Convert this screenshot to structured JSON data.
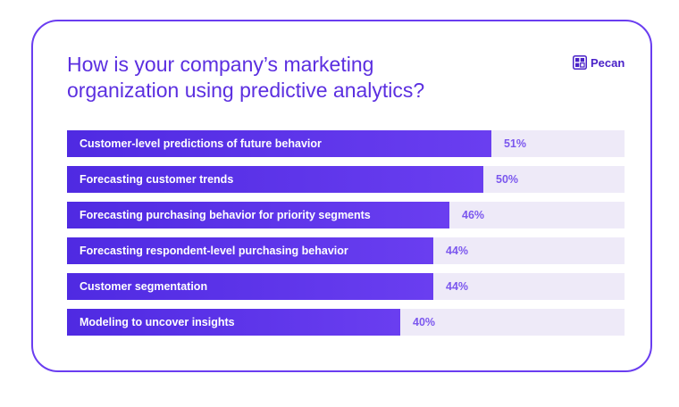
{
  "logo": {
    "text": "Pecan",
    "icon": "pecan-logo-icon"
  },
  "colors": {
    "accent": "#5b2fe0",
    "bar_start": "#4f2ae2",
    "bar_end": "#6a3ef0",
    "track": "#eeeaf8",
    "value_text": "#7b57ee"
  },
  "chart_data": {
    "type": "bar",
    "orientation": "horizontal",
    "title": "How is your company’s marketing organization using predictive analytics?",
    "title_lines": [
      "How is your company’s marketing",
      "organization using predictive analytics?"
    ],
    "categories": [
      "Customer-level predictions of future behavior",
      "Forecasting customer trends",
      "Forecasting purchasing behavior for priority segments",
      "Forecasting respondent-level purchasing behavior",
      "Customer segmentation",
      "Modeling to uncover insights"
    ],
    "values": [
      51,
      50,
      46,
      44,
      44,
      40
    ],
    "value_labels": [
      "51%",
      "50%",
      "46%",
      "44%",
      "44%",
      "40%"
    ],
    "unit": "%",
    "xlim": [
      0,
      67
    ],
    "grid": false,
    "legend": "none"
  }
}
